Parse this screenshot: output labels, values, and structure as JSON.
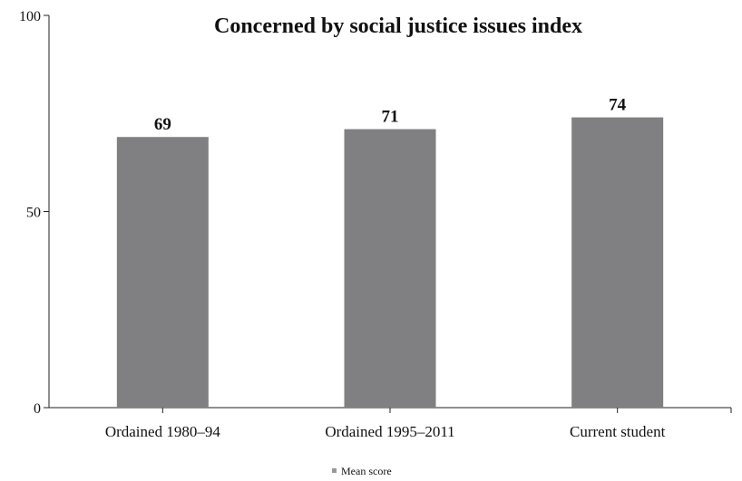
{
  "chart_data": {
    "type": "bar",
    "title": "Concerned by social justice issues index",
    "categories": [
      "Ordained 1980–94",
      "Ordained 1995–2011",
      "Current student"
    ],
    "series": [
      {
        "name": "Mean score",
        "values": [
          69,
          71,
          74
        ],
        "color": "#808083"
      }
    ],
    "data_labels": [
      "69",
      "71",
      "74"
    ],
    "ylim": [
      0,
      100
    ],
    "yticks": [
      0,
      50,
      100
    ],
    "ytick_labels": [
      "0",
      "50",
      "100"
    ],
    "xlabel": "",
    "ylabel": "",
    "grid": false,
    "legend": {
      "position": "bottom",
      "label": "Mean score",
      "marker_color": "#999999"
    }
  }
}
